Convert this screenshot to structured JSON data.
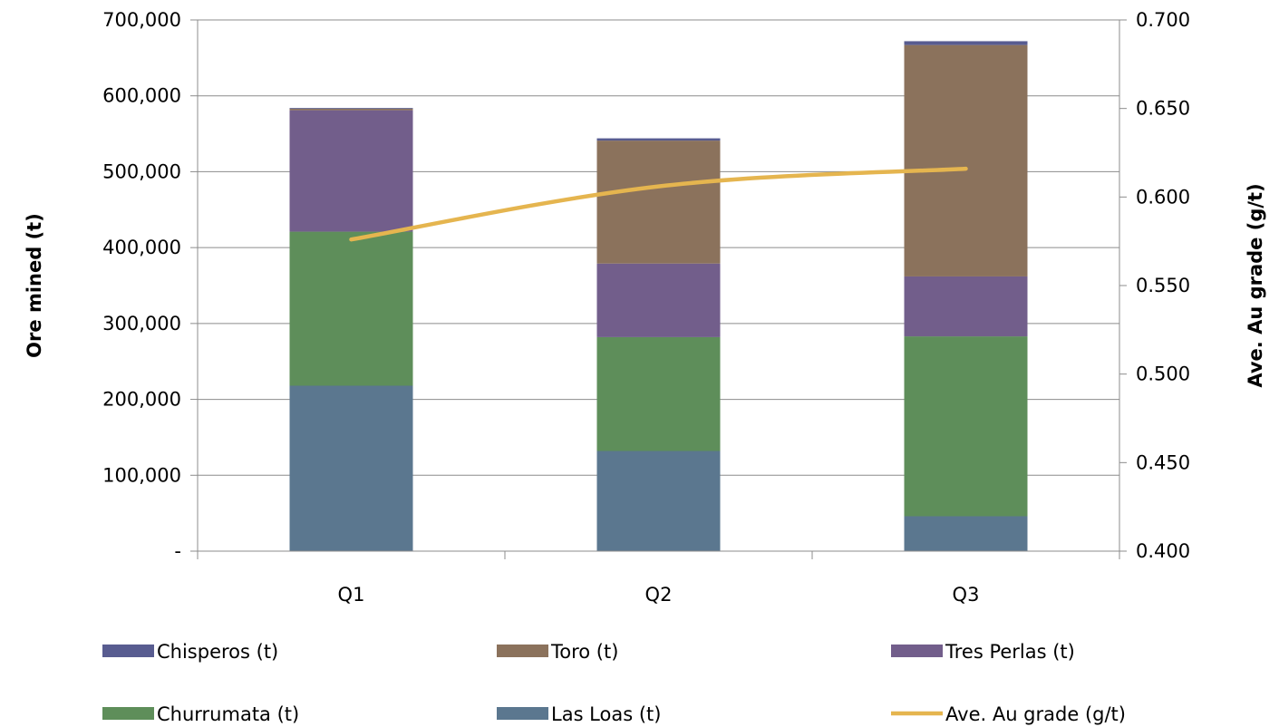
{
  "chart_data": {
    "type": "bar",
    "stacked": true,
    "categories": [
      "Q1",
      "Q2",
      "Q3"
    ],
    "series": [
      {
        "name": "Las Loas (t)",
        "color": "#5b778f",
        "values": [
          218000,
          132000,
          46000
        ]
      },
      {
        "name": "Churrumata (t)",
        "color": "#5e8e5a",
        "values": [
          203000,
          150000,
          237000
        ]
      },
      {
        "name": "Tres Perlas (t)",
        "color": "#725e8b",
        "values": [
          160000,
          97000,
          79000
        ]
      },
      {
        "name": "Toro (t)",
        "color": "#8b725c",
        "values": [
          2000,
          162000,
          305000
        ]
      },
      {
        "name": "Chisperos (t)",
        "color": "#585c90",
        "values": [
          1000,
          3000,
          5000
        ]
      }
    ],
    "line_series": {
      "name": "Ave. Au grade (g/t)",
      "color": "#e5b54f",
      "axis": "right",
      "values": [
        0.576,
        0.606,
        0.616
      ]
    },
    "ylabel": "Ore mined (t)",
    "y2label": "Ave. Au grade (g/t)",
    "ylim": [
      0,
      700000
    ],
    "y2lim": [
      0.4,
      0.7
    ],
    "yticks": [
      "-",
      "100,000",
      "200,000",
      "300,000",
      "400,000",
      "500,000",
      "600,000",
      "700,000"
    ],
    "y2ticks": [
      "0.400",
      "0.450",
      "0.500",
      "0.550",
      "0.600",
      "0.650",
      "0.700"
    ],
    "grid": "horizontal",
    "legend_position": "bottom",
    "legend_order": [
      "Chisperos (t)",
      "Toro (t)",
      "Tres Perlas (t)",
      "Churrumata (t)",
      "Las Loas (t)",
      "Ave. Au grade (g/t)"
    ]
  }
}
